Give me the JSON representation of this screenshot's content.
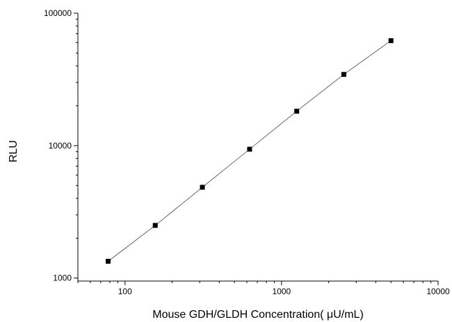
{
  "chart_data": {
    "type": "scatter",
    "xlabel": "Mouse GDH/GLDH Concentration( μU/mL)",
    "ylabel": "RLU",
    "x_scale": "log",
    "y_scale": "log",
    "xlim": [
      50,
      10000
    ],
    "ylim": [
      950,
      100000
    ],
    "x_ticks": [
      100,
      1000,
      10000
    ],
    "x_tick_labels": [
      "100",
      "1000",
      "10000"
    ],
    "y_ticks": [
      1000,
      10000,
      100000
    ],
    "y_tick_labels": [
      "1000",
      "10000",
      "100000"
    ],
    "grid": false,
    "series": [
      {
        "x": [
          78,
          156,
          312,
          625,
          1250,
          2500,
          5000
        ],
        "y": [
          1340,
          2500,
          4850,
          9400,
          18200,
          34500,
          62000
        ],
        "marker": "square",
        "color": "#000000",
        "fit_line": true
      }
    ]
  }
}
